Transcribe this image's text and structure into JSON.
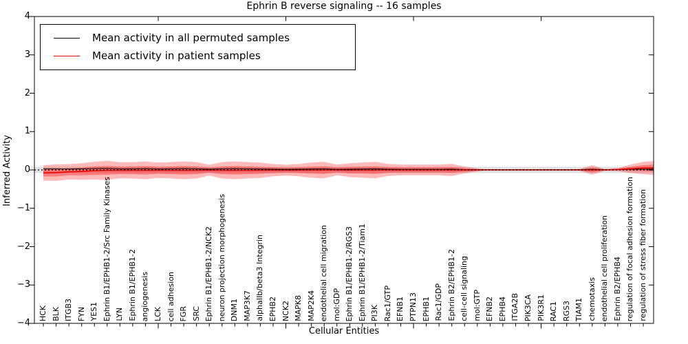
{
  "title": "Ephrin B reverse signaling -- 16 samples",
  "legend": [
    {
      "label": "Mean activity in all permuted samples",
      "color": "#000000"
    },
    {
      "label": "Mean activity in patient samples",
      "color": "#ee0000"
    }
  ],
  "axes": {
    "ylabel": "Inferred Activity",
    "xlabel": "Cellular Entities",
    "yticks": [
      "4",
      "3",
      "2",
      "1",
      "0",
      "−1",
      "−2",
      "−3",
      "−4"
    ],
    "ylim": [
      -4,
      4
    ]
  },
  "chart_data": {
    "type": "line",
    "title": "Ephrin B reverse signaling -- 16 samples",
    "xlabel": "Cellular Entities",
    "ylabel": "Inferred Activity",
    "ylim": [
      -4,
      4
    ],
    "legend_position": "upper left",
    "grid": false,
    "entities": [
      "HCK",
      "BLK",
      "ITGB3",
      "FYN",
      "YES1",
      "Ephrin B1/EPHB1-2/Src Family Kinases",
      "LYN",
      "Ephrin B1/EPHB1-2",
      "angiogenesis",
      "LCK",
      "cell adhesion",
      "FGR",
      "SRC",
      "Ephrin B1/EPHB1-2/NCK2",
      "neuron projection morphogenesis",
      "DNM1",
      "MAP3K7",
      "alphaIIb/beta3 Integrin",
      "EPHB2",
      "NCK2",
      "MAPK8",
      "MAP2K4",
      "endothelial cell migration",
      "mol:GDP",
      "Ephrin B1/EPHB1-2/RGS3",
      "Ephrin B1/EPHB1-2/Tiam1",
      "PI3K",
      "Rac1/GTP",
      "EFNB1",
      "PTPN13",
      "EPHB1",
      "Rac1/GDP",
      "Ephrin B2/EPHB1-2",
      "cell-cell signaling",
      "mol:GTP",
      "EFNB2",
      "EPHB4",
      "ITGA2B",
      "PIK3CA",
      "PIK3R1",
      "RAC1",
      "RGS3",
      "TIAM1",
      "chemotaxis",
      "endothelial cell proliferation",
      "Ephrin B2/EPHB4",
      "regulation of focal adhesion formation",
      "regulation of stress fiber formation"
    ],
    "series": [
      {
        "name": "Mean activity in all permuted samples",
        "color": "#000000",
        "values": [
          0.03,
          0.03,
          0.025,
          0.03,
          0.035,
          0.04,
          0.03,
          0.03,
          0.035,
          0.025,
          0.03,
          0.035,
          0.03,
          0.02,
          0.03,
          0.035,
          0.03,
          0.025,
          0.02,
          0.015,
          0.02,
          0.025,
          0.03,
          0.015,
          0.02,
          0.025,
          0.03,
          0.02,
          0.015,
          0.015,
          0.015,
          0.015,
          0.02,
          0.01,
          0.01,
          0.01,
          0.01,
          0.01,
          0.01,
          0.01,
          0.01,
          0.01,
          0.01,
          0.015,
          0.01,
          0.01,
          0.015,
          0.02
        ]
      },
      {
        "name": "Mean activity in patient samples",
        "color": "#ee0000",
        "values": [
          -0.08,
          -0.07,
          -0.05,
          -0.04,
          -0.02,
          -0.01,
          -0.01,
          -0.01,
          -0.01,
          -0.01,
          -0.01,
          -0.01,
          -0.01,
          -0.005,
          -0.01,
          -0.01,
          -0.01,
          -0.01,
          -0.005,
          -0.005,
          -0.005,
          -0.005,
          -0.005,
          0,
          -0.005,
          -0.005,
          -0.005,
          0,
          0,
          0,
          0,
          0,
          0,
          0,
          0,
          0,
          0,
          0,
          0,
          0,
          0,
          0,
          0,
          0,
          0,
          0.01,
          0.03,
          0.05
        ]
      }
    ],
    "band_color": "#ff0000",
    "band_outer_halfwidth": [
      0.2,
      0.215,
      0.2,
      0.215,
      0.233,
      0.25,
      0.21,
      0.215,
      0.233,
      0.2,
      0.215,
      0.233,
      0.215,
      0.14,
      0.215,
      0.233,
      0.215,
      0.2,
      0.16,
      0.14,
      0.16,
      0.2,
      0.215,
      0.14,
      0.18,
      0.2,
      0.215,
      0.16,
      0.14,
      0.14,
      0.14,
      0.14,
      0.16,
      0.09,
      0.04,
      0,
      0,
      0,
      0,
      0,
      0,
      0,
      0.02,
      0.125,
      0.02,
      0.04,
      0.11,
      0.16
    ],
    "band_inner_halfwidth": [
      0.09,
      0.1,
      0.09,
      0.1,
      0.11,
      0.115,
      0.095,
      0.1,
      0.11,
      0.09,
      0.1,
      0.11,
      0.1,
      0.065,
      0.1,
      0.11,
      0.1,
      0.09,
      0.075,
      0.065,
      0.075,
      0.09,
      0.1,
      0.065,
      0.085,
      0.09,
      0.1,
      0.075,
      0.065,
      0.065,
      0.065,
      0.065,
      0.075,
      0.045,
      0.02,
      0,
      0,
      0,
      0,
      0,
      0,
      0,
      0.01,
      0.06,
      0.01,
      0.02,
      0.05,
      0.075
    ],
    "gray_band_halfwidth": 0.08,
    "gray_band_color": "#909090",
    "zero_line": {
      "style": "dotted",
      "color": "#000000",
      "y": 0
    },
    "x_major_tick_indices": [
      9,
      19,
      29,
      39
    ]
  }
}
